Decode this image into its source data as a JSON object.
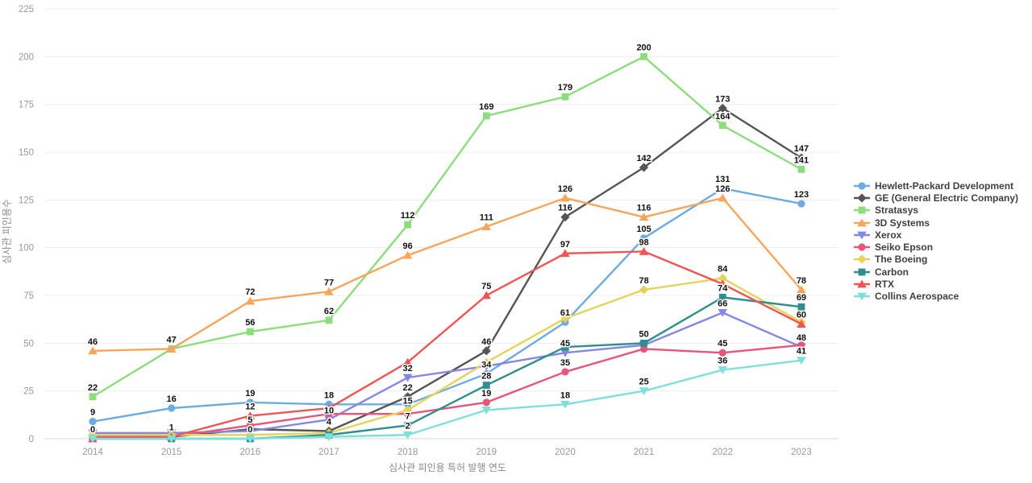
{
  "chart_data": {
    "type": "line",
    "title": "",
    "xlabel": "심사관 피인용 특허 발행 연도",
    "ylabel": "심사관 피인용수",
    "x": [
      2014,
      2015,
      2016,
      2017,
      2018,
      2019,
      2020,
      2021,
      2022,
      2023
    ],
    "ylim": [
      0,
      225
    ],
    "ytick_step": 25,
    "grid": true,
    "legend_position": "right",
    "colors": {
      "grid": "#ededed",
      "axis_line": "#d7dce3",
      "tick_text": "#999999",
      "axis_title_text": "#8a8a8a",
      "legend_text": "#404040",
      "data_label_text": "#111111"
    },
    "series": [
      {
        "name": "Hewlett-Packard Development",
        "color": "#6cace0",
        "marker": "circle",
        "values": [
          9,
          16,
          19,
          18,
          18,
          34,
          61,
          105,
          131,
          123
        ],
        "labels": [
          9,
          16,
          19,
          18,
          null,
          34,
          61,
          105,
          131,
          123
        ]
      },
      {
        "name": "GE (General Electric Company)",
        "color": "#555555",
        "marker": "diamond",
        "values": [
          2,
          1,
          5,
          4,
          22,
          46,
          116,
          142,
          173,
          147
        ],
        "labels": [
          null,
          1,
          5,
          4,
          22,
          46,
          116,
          142,
          173,
          147
        ]
      },
      {
        "name": "Stratasys",
        "color": "#8cdd7c",
        "marker": "square",
        "values": [
          22,
          47,
          56,
          62,
          112,
          169,
          179,
          200,
          164,
          141
        ],
        "labels": [
          22,
          null,
          56,
          62,
          112,
          169,
          179,
          200,
          164,
          141
        ]
      },
      {
        "name": "3D Systems",
        "color": "#f5a65c",
        "marker": "triangle-up",
        "values": [
          46,
          47,
          72,
          77,
          96,
          111,
          126,
          116,
          126,
          78
        ],
        "labels": [
          46,
          47,
          72,
          77,
          96,
          111,
          126,
          116,
          126,
          78
        ]
      },
      {
        "name": "Xerox",
        "color": "#8686e3",
        "marker": "triangle-down",
        "values": [
          3,
          3,
          4,
          10,
          32,
          38,
          45,
          49,
          66,
          48
        ],
        "labels": [
          null,
          null,
          null,
          10,
          32,
          null,
          45,
          null,
          66,
          48
        ]
      },
      {
        "name": "Seiko Epson",
        "color": "#e8557a",
        "marker": "circle",
        "values": [
          1,
          1,
          7,
          13,
          13,
          19,
          35,
          47,
          45,
          49
        ],
        "labels": [
          null,
          null,
          null,
          null,
          null,
          19,
          35,
          null,
          45,
          null
        ]
      },
      {
        "name": "The Boeing",
        "color": "#e6d35c",
        "marker": "diamond",
        "values": [
          2,
          2,
          2,
          3,
          15,
          40,
          63,
          78,
          84,
          61
        ],
        "labels": [
          null,
          null,
          null,
          null,
          15,
          null,
          null,
          78,
          84,
          null
        ]
      },
      {
        "name": "Carbon",
        "color": "#2f8f8f",
        "marker": "square",
        "values": [
          0,
          0,
          0,
          2,
          7,
          28,
          48,
          50,
          74,
          69
        ],
        "labels": [
          0,
          null,
          0,
          null,
          7,
          28,
          null,
          50,
          74,
          69
        ]
      },
      {
        "name": "RTX",
        "color": "#f05454",
        "marker": "triangle-up",
        "values": [
          0,
          1,
          12,
          16,
          40,
          75,
          97,
          98,
          81,
          60
        ],
        "labels": [
          null,
          null,
          12,
          null,
          null,
          75,
          97,
          98,
          null,
          60
        ]
      },
      {
        "name": "Collins Aerospace",
        "color": "#7fe0da",
        "marker": "triangle-down",
        "values": [
          0,
          0,
          0,
          1,
          2,
          15,
          18,
          25,
          36,
          41
        ],
        "labels": [
          null,
          null,
          null,
          null,
          2,
          null,
          18,
          25,
          36,
          41
        ]
      }
    ]
  }
}
